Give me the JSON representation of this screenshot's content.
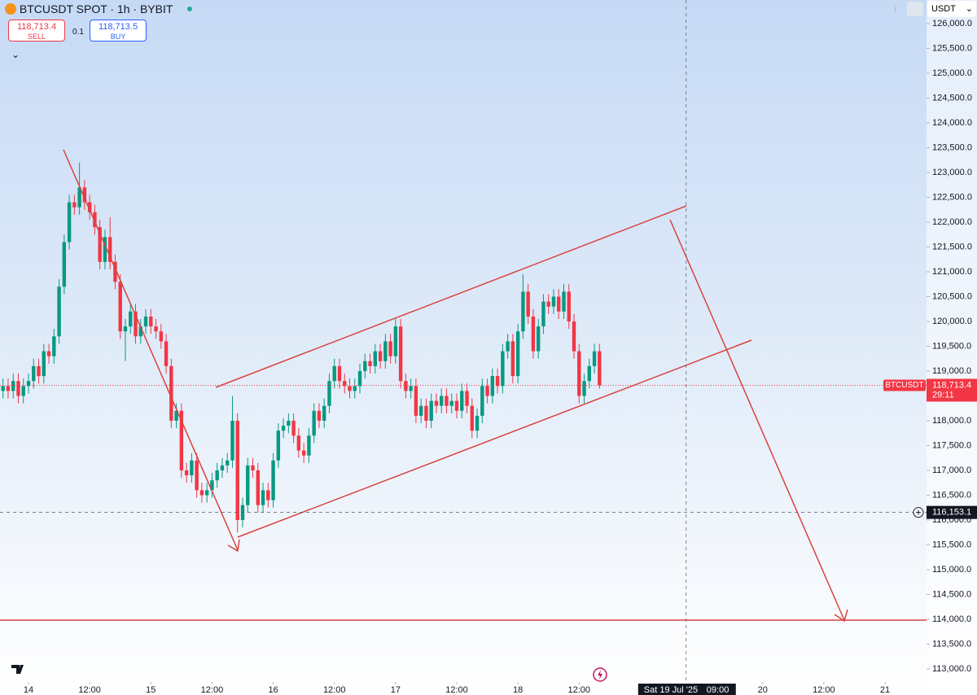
{
  "header": {
    "symbol": "BTCUSDT SPOT · 1h · BYBIT",
    "sell_price": "118,713.4",
    "sell_label": "SELL",
    "spread": "0.1",
    "buy_price": "118,713.5",
    "buy_label": "BUY",
    "currency": "USDT"
  },
  "chart_data": {
    "type": "candlestick",
    "grid": false,
    "up_color": "#089981",
    "down_color": "#f23645",
    "x": [
      "2025-07-13 19:00",
      "2025-07-13 20:00",
      "2025-07-13 21:00",
      "2025-07-13 22:00",
      "2025-07-13 23:00",
      "2025-07-14 00:00",
      "2025-07-14 01:00",
      "2025-07-14 02:00",
      "2025-07-14 03:00",
      "2025-07-14 04:00",
      "2025-07-14 05:00",
      "2025-07-14 06:00",
      "2025-07-14 07:00",
      "2025-07-14 08:00",
      "2025-07-14 09:00",
      "2025-07-14 10:00",
      "2025-07-14 11:00",
      "2025-07-14 12:00",
      "2025-07-14 13:00",
      "2025-07-14 14:00",
      "2025-07-14 15:00",
      "2025-07-14 16:00",
      "2025-07-14 17:00",
      "2025-07-14 18:00",
      "2025-07-14 19:00",
      "2025-07-14 20:00",
      "2025-07-14 21:00",
      "2025-07-14 22:00",
      "2025-07-14 23:00",
      "2025-07-15 00:00",
      "2025-07-15 01:00",
      "2025-07-15 02:00",
      "2025-07-15 03:00",
      "2025-07-15 04:00",
      "2025-07-15 05:00",
      "2025-07-15 06:00",
      "2025-07-15 07:00",
      "2025-07-15 08:00",
      "2025-07-15 09:00",
      "2025-07-15 10:00",
      "2025-07-15 11:00",
      "2025-07-15 12:00",
      "2025-07-15 13:00",
      "2025-07-15 14:00",
      "2025-07-15 15:00",
      "2025-07-15 16:00",
      "2025-07-15 17:00",
      "2025-07-15 18:00",
      "2025-07-15 19:00",
      "2025-07-15 20:00",
      "2025-07-15 21:00",
      "2025-07-15 22:00",
      "2025-07-15 23:00",
      "2025-07-16 00:00",
      "2025-07-16 01:00",
      "2025-07-16 02:00",
      "2025-07-16 03:00",
      "2025-07-16 04:00",
      "2025-07-16 05:00",
      "2025-07-16 06:00",
      "2025-07-16 07:00",
      "2025-07-16 08:00",
      "2025-07-16 09:00",
      "2025-07-16 10:00",
      "2025-07-16 11:00",
      "2025-07-16 12:00",
      "2025-07-16 13:00",
      "2025-07-16 14:00",
      "2025-07-16 15:00",
      "2025-07-16 16:00",
      "2025-07-16 17:00",
      "2025-07-16 18:00",
      "2025-07-16 19:00",
      "2025-07-16 20:00",
      "2025-07-16 21:00",
      "2025-07-16 22:00",
      "2025-07-16 23:00",
      "2025-07-17 00:00",
      "2025-07-17 01:00",
      "2025-07-17 02:00",
      "2025-07-17 03:00",
      "2025-07-17 04:00",
      "2025-07-17 05:00",
      "2025-07-17 06:00",
      "2025-07-17 07:00",
      "2025-07-17 08:00",
      "2025-07-17 09:00",
      "2025-07-17 10:00",
      "2025-07-17 11:00",
      "2025-07-17 12:00",
      "2025-07-17 13:00",
      "2025-07-17 14:00",
      "2025-07-17 15:00",
      "2025-07-17 16:00",
      "2025-07-17 17:00",
      "2025-07-17 18:00",
      "2025-07-17 19:00",
      "2025-07-17 20:00",
      "2025-07-17 21:00",
      "2025-07-17 22:00",
      "2025-07-17 23:00",
      "2025-07-18 00:00",
      "2025-07-18 01:00",
      "2025-07-18 02:00",
      "2025-07-18 03:00",
      "2025-07-18 04:00",
      "2025-07-18 05:00",
      "2025-07-18 06:00",
      "2025-07-18 07:00",
      "2025-07-18 08:00",
      "2025-07-18 09:00",
      "2025-07-18 10:00",
      "2025-07-18 11:00",
      "2025-07-18 12:00",
      "2025-07-18 13:00",
      "2025-07-18 14:00",
      "2025-07-18 15:00",
      "2025-07-18 16:00"
    ],
    "open": [
      118600,
      118700,
      118600,
      118800,
      118500,
      118700,
      118800,
      119100,
      118900,
      119400,
      119300,
      119700,
      120700,
      121600,
      122400,
      122300,
      122700,
      122400,
      122200,
      121900,
      121200,
      121700,
      121200,
      120800,
      119800,
      119900,
      120200,
      119700,
      119900,
      120100,
      119900,
      119800,
      119600,
      119100,
      118000,
      118200,
      117000,
      116900,
      117200,
      116600,
      116500,
      116600,
      116800,
      117000,
      117100,
      117200,
      118000,
      116000,
      116300,
      117100,
      117000,
      116300,
      116600,
      116400,
      117200,
      117800,
      117900,
      118000,
      117700,
      117400,
      117300,
      117700,
      118200,
      118000,
      118300,
      118800,
      119100,
      118800,
      118700,
      118600,
      118700,
      119000,
      119200,
      119100,
      119400,
      119200,
      119600,
      119300,
      119900,
      118800,
      118600,
      118700,
      118100,
      118300,
      118000,
      118400,
      118300,
      118500,
      118300,
      118400,
      118200,
      118600,
      118300,
      117800,
      118100,
      118700,
      118500,
      118900,
      118700,
      119400,
      119600,
      118900,
      119800,
      120600,
      120100,
      119400,
      119900,
      120400,
      120300,
      120500,
      120200,
      120600,
      120000,
      119400,
      118500,
      118800,
      119100,
      119400
    ],
    "high": [
      118850,
      118850,
      118950,
      118950,
      118850,
      118950,
      119250,
      119250,
      119550,
      119550,
      119850,
      120850,
      121750,
      122550,
      122550,
      123200,
      122850,
      122550,
      122350,
      122050,
      121850,
      122100,
      121350,
      120950,
      120050,
      120350,
      120350,
      120050,
      120250,
      120250,
      120050,
      119950,
      119750,
      119250,
      118350,
      118350,
      117150,
      117350,
      117350,
      116750,
      116750,
      116950,
      117150,
      117250,
      117350,
      118500,
      118150,
      116450,
      117250,
      117250,
      117150,
      116750,
      116750,
      117350,
      117950,
      118050,
      118150,
      118150,
      117850,
      117550,
      117850,
      118350,
      118350,
      118450,
      118950,
      119250,
      119250,
      118950,
      118850,
      118850,
      119150,
      119350,
      119350,
      119550,
      119550,
      119750,
      119750,
      120050,
      120050,
      118950,
      118850,
      118850,
      118450,
      118450,
      118550,
      118550,
      118650,
      118650,
      118550,
      118550,
      118750,
      118750,
      118450,
      118250,
      118850,
      118850,
      119050,
      119050,
      119550,
      119750,
      119750,
      119950,
      120950,
      120750,
      120250,
      120050,
      120550,
      120550,
      120650,
      120650,
      120750,
      120750,
      120150,
      119550,
      118950,
      119250,
      119550,
      119550
    ],
    "low": [
      118450,
      118450,
      118450,
      118350,
      118350,
      118550,
      118650,
      118750,
      118750,
      119150,
      119150,
      119550,
      120550,
      121450,
      122150,
      122150,
      122250,
      122050,
      121750,
      121050,
      121050,
      121050,
      120650,
      119650,
      119200,
      119750,
      119550,
      119550,
      119750,
      119750,
      119650,
      119450,
      118950,
      117850,
      117850,
      116850,
      116750,
      116750,
      116450,
      116350,
      116350,
      116450,
      116650,
      116850,
      116950,
      117050,
      115750,
      115850,
      116150,
      116850,
      116150,
      116150,
      116250,
      116250,
      117050,
      117650,
      117750,
      117550,
      117250,
      117150,
      117150,
      117550,
      117850,
      117850,
      118150,
      118650,
      118650,
      118550,
      118450,
      118450,
      118550,
      118850,
      118950,
      118950,
      119050,
      119050,
      119150,
      119150,
      118650,
      118450,
      118450,
      117950,
      117950,
      117850,
      117850,
      118150,
      118150,
      118150,
      118150,
      118050,
      118050,
      118150,
      117650,
      117650,
      117950,
      118350,
      118350,
      118550,
      118550,
      119250,
      118750,
      118750,
      119650,
      119950,
      119250,
      119250,
      119750,
      120150,
      120150,
      120050,
      120050,
      119850,
      119250,
      118350,
      118350,
      118650,
      118950,
      118650
    ],
    "close": [
      118700,
      118600,
      118800,
      118500,
      118700,
      118800,
      119100,
      118900,
      119400,
      119300,
      119700,
      120700,
      121600,
      122400,
      122300,
      122700,
      122400,
      122200,
      121900,
      121200,
      121700,
      121200,
      120800,
      119800,
      119900,
      120200,
      119700,
      119900,
      120100,
      119900,
      119800,
      119600,
      119100,
      118000,
      118200,
      117000,
      116900,
      117200,
      116600,
      116500,
      116600,
      116800,
      117000,
      117100,
      117200,
      118000,
      116000,
      116300,
      117100,
      117000,
      116300,
      116600,
      116400,
      117200,
      117800,
      117900,
      118000,
      117700,
      117400,
      117300,
      117700,
      118200,
      118000,
      118300,
      118800,
      119100,
      118800,
      118700,
      118600,
      118700,
      119000,
      119200,
      119100,
      119400,
      119200,
      119600,
      119300,
      119900,
      118800,
      118600,
      118700,
      118100,
      118300,
      118000,
      118400,
      118300,
      118500,
      118300,
      118400,
      118200,
      118600,
      118300,
      117800,
      118100,
      118700,
      118500,
      118900,
      118700,
      119400,
      119600,
      118900,
      119800,
      120600,
      120100,
      119400,
      119900,
      120400,
      120300,
      120500,
      120200,
      120600,
      120000,
      119400,
      118500,
      118800,
      119100,
      119400,
      118713.4
    ],
    "ylim": [
      113000,
      126000
    ],
    "yticks": [
      {
        "value": 113000,
        "label": "113,000.0"
      },
      {
        "value": 113500,
        "label": "113,500.0"
      },
      {
        "value": 114000,
        "label": "114,000.0"
      },
      {
        "value": 114500,
        "label": "114,500.0"
      },
      {
        "value": 115000,
        "label": "115,000.0"
      },
      {
        "value": 115500,
        "label": "115,500.0"
      },
      {
        "value": 116000,
        "label": "116,000.0"
      },
      {
        "value": 116500,
        "label": "116,500.0"
      },
      {
        "value": 117000,
        "label": "117,000.0"
      },
      {
        "value": 117500,
        "label": "117,500.0"
      },
      {
        "value": 118000,
        "label": "118,000.0"
      },
      {
        "value": 118500,
        "label": "118,500.0"
      },
      {
        "value": 119000,
        "label": "119,000.0"
      },
      {
        "value": 119500,
        "label": "119,500.0"
      },
      {
        "value": 120000,
        "label": "120,000.0"
      },
      {
        "value": 120500,
        "label": "120,500.0"
      },
      {
        "value": 121000,
        "label": "121,000.0"
      },
      {
        "value": 121500,
        "label": "121,500.0"
      },
      {
        "value": 122000,
        "label": "122,000.0"
      },
      {
        "value": 122500,
        "label": "122,500.0"
      },
      {
        "value": 123000,
        "label": "123,000.0"
      },
      {
        "value": 123500,
        "label": "123,500.0"
      },
      {
        "value": 124000,
        "label": "124,000.0"
      },
      {
        "value": 124500,
        "label": "124,500.0"
      },
      {
        "value": 125000,
        "label": "125,000.0"
      },
      {
        "value": 125500,
        "label": "125,500.0"
      },
      {
        "value": 126000,
        "label": "126,000.0"
      }
    ],
    "xticks": [
      {
        "value": "2025-07-14 00:00",
        "label": "14"
      },
      {
        "value": "2025-07-14 12:00",
        "label": "12:00"
      },
      {
        "value": "2025-07-15 00:00",
        "label": "15"
      },
      {
        "value": "2025-07-15 12:00",
        "label": "12:00"
      },
      {
        "value": "2025-07-16 00:00",
        "label": "16"
      },
      {
        "value": "2025-07-16 12:00",
        "label": "12:00"
      },
      {
        "value": "2025-07-17 00:00",
        "label": "17"
      },
      {
        "value": "2025-07-17 12:00",
        "label": "12:00"
      },
      {
        "value": "2025-07-18 00:00",
        "label": "18"
      },
      {
        "value": "2025-07-18 12:00",
        "label": "12:00"
      },
      {
        "value": "2025-07-20 00:00",
        "label": "20"
      },
      {
        "value": "2025-07-20 12:00",
        "label": "12:00"
      },
      {
        "value": "2025-07-21 00:00",
        "label": "21"
      }
    ],
    "last_price": {
      "value": 118713.4,
      "label": "118,713.4",
      "symbol": "BTCUSDT",
      "countdown": "29:11"
    },
    "crosshair": {
      "price": 116153.1,
      "price_label": "116,153.1",
      "time": "2025-07-19 09:00",
      "time_label": "Sat 19 Jul '25",
      "time_clock": "09:00"
    }
  }
}
